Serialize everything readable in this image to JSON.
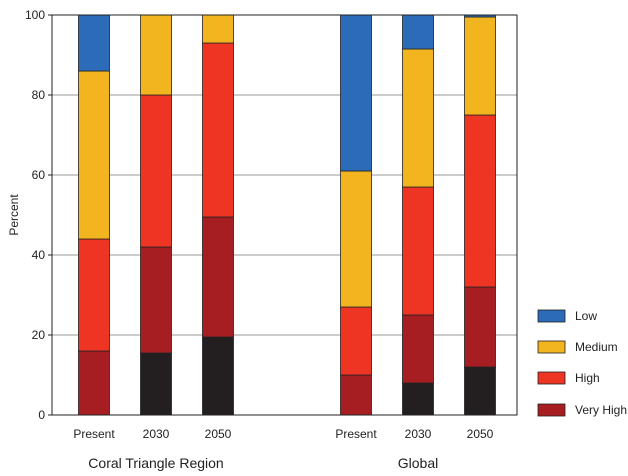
{
  "chart_data": {
    "type": "bar",
    "stacked": true,
    "ylabel": "Percent",
    "ylim": [
      0,
      100
    ],
    "yticks": [
      0,
      20,
      40,
      60,
      80,
      100
    ],
    "grid": true,
    "legend_position": "right",
    "groups": [
      {
        "name": "Coral Triangle Region",
        "categories": [
          "Present",
          "2030",
          "2050"
        ]
      },
      {
        "name": "Global",
        "categories": [
          "Present",
          "2030",
          "2050"
        ]
      }
    ],
    "categories": [
      "Present",
      "2030",
      "2050",
      "Present",
      "2030",
      "2050"
    ],
    "series": [
      {
        "name": "",
        "color": "#231f20",
        "values": [
          0,
          15.5,
          19.5,
          0,
          8,
          12
        ]
      },
      {
        "name": "Very High",
        "color": "#a71e22",
        "values": [
          16,
          26.5,
          30,
          10,
          17,
          20
        ]
      },
      {
        "name": "High",
        "color": "#ee3524",
        "values": [
          28,
          38,
          43.5,
          17,
          32,
          43
        ]
      },
      {
        "name": "Medium",
        "color": "#f3b51f",
        "values": [
          42,
          20,
          7,
          34,
          34.5,
          24.5
        ]
      },
      {
        "name": "Low",
        "color": "#2b6bb8",
        "values": [
          14,
          0,
          0,
          39,
          8.5,
          0.5
        ]
      }
    ],
    "legend": [
      "Low",
      "Medium",
      "High",
      "Very High"
    ]
  }
}
